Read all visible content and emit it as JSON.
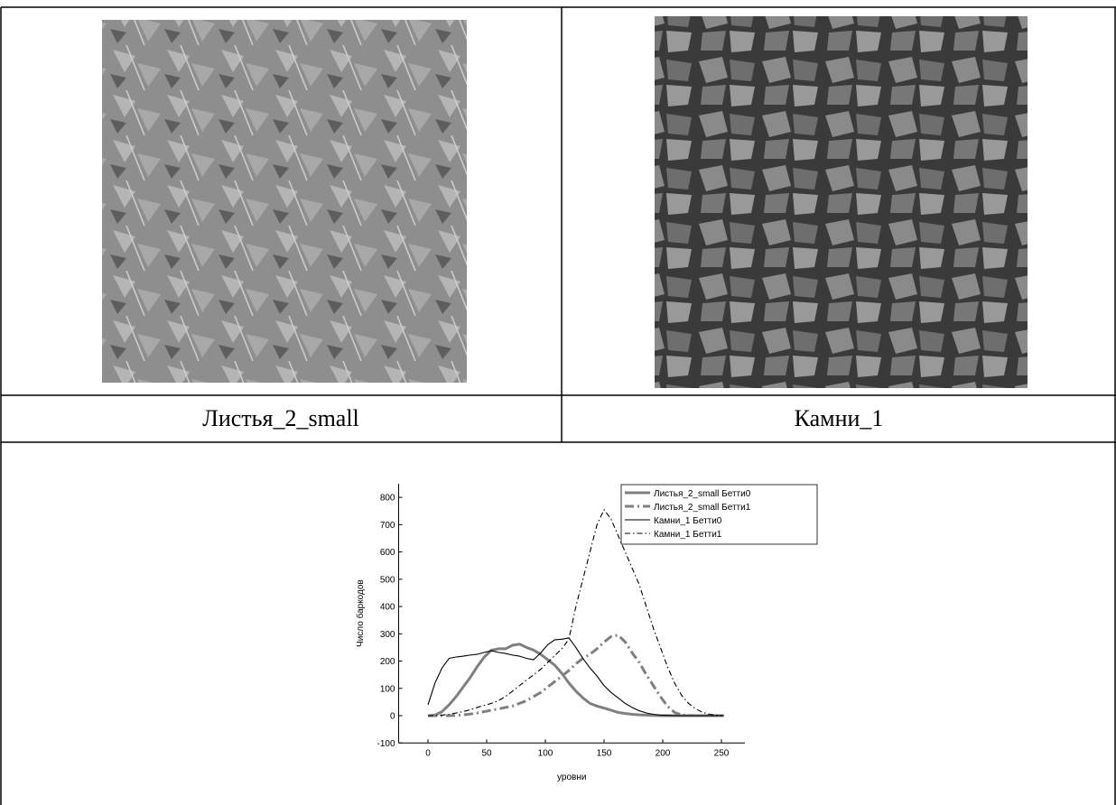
{
  "table": {
    "labels": [
      "Листья_2_small",
      "Камни_1"
    ]
  },
  "chart_data": {
    "type": "line",
    "x_label": "уровни",
    "y_label": "Число баркодов",
    "x": [
      0,
      6,
      12,
      18,
      24,
      30,
      36,
      42,
      48,
      54,
      60,
      66,
      72,
      78,
      84,
      90,
      96,
      102,
      108,
      114,
      120,
      126,
      132,
      138,
      144,
      150,
      156,
      162,
      168,
      174,
      180,
      186,
      192,
      198,
      204,
      210,
      216,
      222,
      228,
      234,
      240,
      246,
      252
    ],
    "series": [
      {
        "name": "Листья_2_small Бетти0",
        "color": "#808080",
        "dash": "solid",
        "thick": true,
        "values": [
          0,
          2,
          15,
          40,
          70,
          105,
          140,
          180,
          215,
          240,
          245,
          245,
          258,
          262,
          250,
          240,
          225,
          205,
          185,
          155,
          120,
          90,
          65,
          45,
          35,
          28,
          20,
          12,
          8,
          5,
          3,
          2,
          1,
          0,
          0,
          0,
          0,
          0,
          0,
          0,
          0,
          0,
          0
        ]
      },
      {
        "name": "Листья_2_small Бетти1",
        "color": "#808080",
        "dash": "dashdot",
        "thick": true,
        "values": [
          0,
          0,
          0,
          0,
          1,
          3,
          6,
          10,
          15,
          20,
          25,
          30,
          35,
          45,
          55,
          70,
          85,
          105,
          125,
          145,
          165,
          190,
          210,
          225,
          245,
          270,
          290,
          295,
          270,
          230,
          195,
          150,
          110,
          70,
          35,
          12,
          3,
          1,
          0,
          0,
          0,
          0,
          0
        ]
      },
      {
        "name": "Камни_1 Бетти0",
        "color": "#000000",
        "dash": "solid",
        "thick": false,
        "values": [
          40,
          120,
          175,
          210,
          215,
          218,
          222,
          225,
          232,
          238,
          232,
          228,
          222,
          218,
          210,
          205,
          230,
          260,
          278,
          280,
          285,
          250,
          210,
          175,
          145,
          110,
          85,
          65,
          45,
          30,
          18,
          10,
          5,
          2,
          1,
          0,
          0,
          0,
          0,
          0,
          0,
          0,
          0
        ]
      },
      {
        "name": "Камни_1 Бетти1",
        "color": "#000000",
        "dash": "dashdot",
        "thick": false,
        "values": [
          0,
          0,
          2,
          5,
          10,
          15,
          22,
          30,
          38,
          45,
          55,
          70,
          90,
          110,
          130,
          150,
          170,
          195,
          220,
          245,
          280,
          400,
          500,
          600,
          700,
          755,
          720,
          660,
          600,
          540,
          480,
          400,
          320,
          250,
          180,
          120,
          75,
          45,
          25,
          12,
          5,
          2,
          0
        ]
      }
    ],
    "xlim": [
      -25,
      270
    ],
    "ylim": [
      -100,
      850
    ],
    "xticks": [
      0,
      50,
      100,
      150,
      200,
      250
    ],
    "yticks": [
      -100,
      0,
      100,
      200,
      300,
      400,
      500,
      600,
      700,
      800
    ]
  }
}
